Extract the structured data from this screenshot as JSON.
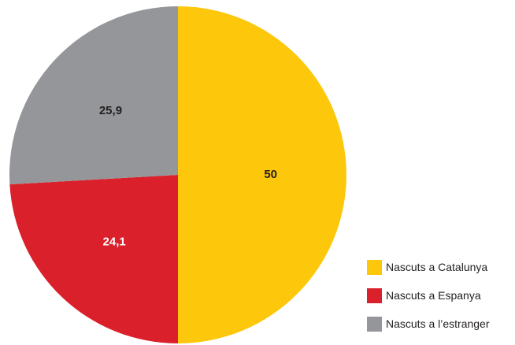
{
  "chart_data": {
    "type": "pie",
    "categories": [
      "Nascuts a Catalunya",
      "Nascuts a Espanya",
      "Nascuts a l’estranger"
    ],
    "values": [
      50,
      24.1,
      25.9
    ],
    "data_labels": [
      "50",
      "24,1",
      "25,9"
    ],
    "colors": [
      "#fdc70c",
      "#da202a",
      "#959699"
    ],
    "label_colors": [
      "#231f20",
      "#ffffff",
      "#231f20"
    ],
    "start_angle_deg": 0,
    "direction": "clockwise",
    "legend_position": "bottom-right"
  }
}
